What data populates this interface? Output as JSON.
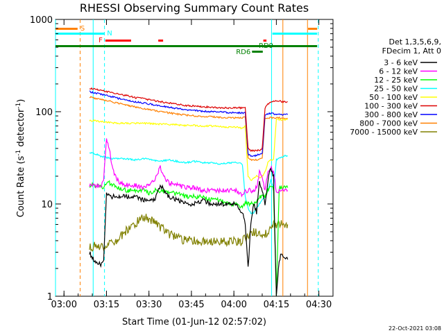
{
  "chart_data": {
    "type": "line",
    "title": "RHESSI Observing Summary Count Rates",
    "xlabel": "Start Time (01-Jun-12 02:57:02)",
    "ylabel_main": "Count Rate (s",
    "ylabel_sup1": "-1",
    "ylabel_mid": " detector",
    "ylabel_sup2": "-1",
    "ylabel_end": ")",
    "footer_date": "22-Oct-2021 03:08",
    "yscale": "log",
    "ylim": [
      1,
      1000
    ],
    "xlim_minutes": [
      0,
      98
    ],
    "x_ticks": [
      {
        "label": "03:00",
        "minute": 3
      },
      {
        "label": "03:15",
        "minute": 18
      },
      {
        "label": "03:30",
        "minute": 33
      },
      {
        "label": "03:45",
        "minute": 48
      },
      {
        "label": "04:00",
        "minute": 63
      },
      {
        "label": "04:15",
        "minute": 78
      },
      {
        "label": "04:30",
        "minute": 93
      }
    ],
    "y_ticks": [
      {
        "label": "1",
        "value": 1
      },
      {
        "label": "10",
        "value": 10
      },
      {
        "label": "100",
        "value": 100
      },
      {
        "label": "1000",
        "value": 1000
      }
    ],
    "legend_header": [
      "Det 1,3,5,6,9,",
      "FDecim 1, Att 0"
    ],
    "series": [
      {
        "name": "3 - 6 keV",
        "color": "#000000",
        "x": [
          12,
          13,
          14,
          15,
          16,
          17,
          18,
          19,
          20,
          22,
          25,
          28,
          31,
          33,
          35,
          37,
          40,
          43,
          46,
          49,
          52,
          55,
          58,
          61,
          64,
          66,
          67,
          68,
          69,
          70,
          71,
          72,
          73,
          74,
          75,
          76,
          77,
          78,
          79,
          80,
          81,
          82
        ],
        "y": [
          3.0,
          2.6,
          2.4,
          2.3,
          2.2,
          2.4,
          13,
          12,
          12,
          12,
          12,
          12,
          11,
          11,
          11,
          16,
          12,
          11,
          10,
          10,
          11,
          10,
          10,
          10,
          10,
          8,
          6,
          2,
          6,
          10,
          8,
          18,
          14,
          10,
          18,
          25,
          20,
          1,
          2.5,
          3,
          2.5,
          2.5
        ]
      },
      {
        "name": "6 - 12 keV",
        "color": "#ff00ff",
        "x": [
          12,
          14,
          16,
          17,
          18,
          19,
          20,
          21,
          22,
          23,
          25,
          28,
          31,
          33,
          35,
          37,
          38,
          40,
          43,
          46,
          49,
          52,
          55,
          58,
          61,
          64,
          66,
          67,
          68,
          69,
          70,
          71,
          72,
          73,
          74,
          75,
          76,
          77,
          78,
          79,
          80,
          81,
          82
        ],
        "y": [
          16,
          16,
          15,
          18,
          50,
          40,
          25,
          20,
          18,
          17,
          16,
          16,
          15,
          16,
          18,
          25,
          20,
          17,
          16,
          15,
          15,
          14,
          14,
          14,
          14,
          14,
          12,
          14,
          14,
          14,
          14,
          15,
          22,
          20,
          14,
          22,
          25,
          22,
          14,
          14,
          14,
          14,
          14
        ],
        "note": ""
      },
      {
        "name": "12 - 25 keV",
        "color": "#00ff00",
        "x": [
          12,
          14,
          16,
          18,
          19,
          20,
          22,
          25,
          28,
          31,
          33,
          35,
          37,
          40,
          43,
          46,
          49,
          52,
          55,
          58,
          61,
          64,
          66,
          67,
          68,
          69,
          70,
          71,
          72,
          73,
          74,
          75,
          76,
          77,
          78,
          79,
          80,
          81,
          82
        ],
        "y": [
          16,
          16,
          15,
          16,
          17,
          16,
          15,
          14,
          14,
          14,
          13,
          14,
          14,
          13,
          13,
          12,
          12,
          12,
          11,
          11,
          10,
          10,
          9,
          10,
          10,
          10,
          10,
          11,
          12,
          12,
          12,
          14,
          16,
          14,
          1,
          15,
          15,
          15,
          15
        ]
      },
      {
        "name": "25 - 50 keV",
        "color": "#00ffff",
        "x": [
          12,
          14,
          16,
          18,
          20,
          22,
          25,
          28,
          31,
          34,
          37,
          40,
          43,
          46,
          49,
          52,
          55,
          58,
          61,
          64,
          66,
          67,
          68,
          69,
          70,
          71,
          72,
          73,
          74,
          75,
          76,
          77,
          78,
          79,
          80,
          81,
          82
        ],
        "y": [
          36,
          35,
          33,
          32,
          31,
          31,
          31,
          30,
          31,
          30,
          29,
          30,
          29,
          28,
          29,
          28,
          28,
          27,
          28,
          28,
          27,
          12,
          9,
          8,
          8,
          9,
          10,
          11,
          12,
          14,
          18,
          15,
          30,
          31,
          32,
          33,
          33
        ]
      },
      {
        "name": "50 - 100 keV",
        "color": "#ffff00",
        "x": [
          12,
          14,
          16,
          18,
          20,
          22,
          25,
          28,
          31,
          34,
          37,
          40,
          43,
          46,
          49,
          52,
          55,
          58,
          61,
          64,
          66,
          67,
          68,
          69,
          70,
          71,
          72,
          73,
          74,
          75,
          76,
          77,
          78,
          79,
          80,
          81,
          82
        ],
        "y": [
          80,
          80,
          78,
          77,
          76,
          75,
          75,
          75,
          75,
          74,
          73,
          73,
          72,
          71,
          71,
          70,
          70,
          69,
          68,
          68,
          66,
          70,
          20,
          18,
          19,
          20,
          19,
          20,
          22,
          28,
          30,
          30,
          82,
          82,
          82,
          82,
          82
        ]
      },
      {
        "name": "100 - 300 keV",
        "color": "#dd0000",
        "x": [
          12,
          14,
          16,
          18,
          20,
          22,
          25,
          28,
          31,
          34,
          37,
          40,
          43,
          46,
          49,
          52,
          55,
          58,
          61,
          64,
          66,
          67,
          68,
          69,
          70,
          71,
          72,
          73,
          74,
          75,
          76,
          77,
          78,
          79,
          80,
          81,
          82
        ],
        "y": [
          180,
          175,
          170,
          165,
          160,
          155,
          150,
          142,
          138,
          133,
          128,
          124,
          120,
          117,
          115,
          113,
          112,
          110,
          110,
          110,
          110,
          112,
          40,
          38,
          38,
          38,
          38,
          40,
          110,
          120,
          128,
          130,
          130,
          130,
          128,
          128,
          128
        ]
      },
      {
        "name": "300 - 800 keV",
        "color": "#0000ff",
        "x": [
          12,
          14,
          16,
          18,
          20,
          22,
          25,
          28,
          31,
          34,
          37,
          40,
          43,
          46,
          49,
          52,
          55,
          58,
          61,
          64,
          66,
          67,
          68,
          69,
          70,
          71,
          72,
          73,
          74,
          75,
          76,
          77,
          78,
          79,
          80,
          81,
          82
        ],
        "y": [
          165,
          160,
          155,
          150,
          145,
          140,
          133,
          128,
          124,
          120,
          115,
          112,
          108,
          105,
          103,
          101,
          100,
          99,
          98,
          97,
          97,
          98,
          35,
          33,
          33,
          34,
          34,
          35,
          92,
          95,
          96,
          95,
          94,
          94,
          93,
          93,
          93
        ]
      },
      {
        "name": "800 - 7000 keV",
        "color": "#ff8000",
        "x": [
          12,
          14,
          16,
          18,
          20,
          22,
          25,
          28,
          31,
          34,
          37,
          40,
          43,
          46,
          49,
          52,
          55,
          58,
          61,
          64,
          66,
          67,
          68,
          69,
          70,
          71,
          72,
          73,
          74,
          75,
          76,
          77,
          78,
          79,
          80,
          81,
          82
        ],
        "y": [
          145,
          140,
          136,
          132,
          128,
          124,
          118,
          113,
          108,
          104,
          100,
          97,
          94,
          92,
          90,
          89,
          88,
          87,
          86,
          86,
          86,
          87,
          32,
          30,
          30,
          30,
          31,
          32,
          84,
          86,
          86,
          86,
          86,
          86,
          85,
          85,
          85
        ]
      },
      {
        "name": "7000 - 15000 keV",
        "color": "#808000",
        "x": [
          12,
          14,
          16,
          18,
          20,
          22,
          24,
          26,
          28,
          30,
          32,
          34,
          36,
          38,
          40,
          43,
          46,
          49,
          52,
          55,
          58,
          61,
          64,
          66,
          67,
          68,
          69,
          70,
          71,
          72,
          73,
          74,
          75,
          76,
          77,
          78,
          79,
          80,
          81,
          82
        ],
        "y": [
          3.3,
          3.6,
          3.4,
          3.6,
          3.8,
          4.2,
          4.8,
          5.5,
          6.2,
          6.8,
          7.0,
          6.5,
          6.0,
          5.3,
          4.8,
          4.3,
          4.0,
          4.0,
          3.9,
          3.9,
          3.9,
          3.9,
          3.9,
          3.8,
          4.5,
          4.5,
          4.8,
          5.0,
          5.0,
          4.6,
          4.5,
          4.8,
          5.0,
          5.5,
          6.0,
          6.0,
          6.0,
          6.0,
          6.0,
          6.0
        ]
      }
    ],
    "flags": [
      {
        "label": "S",
        "color": "#ff8000",
        "segments": [
          [
            0,
            7.8
          ],
          [
            89.2,
            92.4
          ]
        ]
      },
      {
        "label": "N",
        "color": "#00ffff",
        "segments": [
          [
            0,
            17.2
          ],
          [
            76.6,
            92.4
          ]
        ]
      },
      {
        "label": "F",
        "color": "#ff0000",
        "segments": [
          [
            17.6,
            26.7
          ],
          [
            36.3,
            38.0
          ],
          [
            73.4,
            74.5
          ]
        ]
      },
      {
        "label": "RD9",
        "color": "#008000",
        "segments": [
          [
            0,
            92.4
          ]
        ]
      },
      {
        "label": "RD6",
        "color": "#008000",
        "segments": [
          [
            69.4,
            73.2
          ]
        ]
      }
    ],
    "vlines": [
      {
        "minute": 0.0,
        "color": "#00ffff",
        "style": "solid"
      },
      {
        "minute": 8.7,
        "color": "#ff8000",
        "style": "dashed"
      },
      {
        "minute": 13.3,
        "color": "#00ffff",
        "style": "solid"
      },
      {
        "minute": 17.3,
        "color": "#00ffff",
        "style": "dashed"
      },
      {
        "minute": 76.3,
        "color": "#00ffff",
        "style": "solid"
      },
      {
        "minute": 80.3,
        "color": "#ff8000",
        "style": "solid"
      },
      {
        "minute": 89.0,
        "color": "#ff8000",
        "style": "solid"
      },
      {
        "minute": 92.8,
        "color": "#00ffff",
        "style": "dashed"
      }
    ]
  }
}
